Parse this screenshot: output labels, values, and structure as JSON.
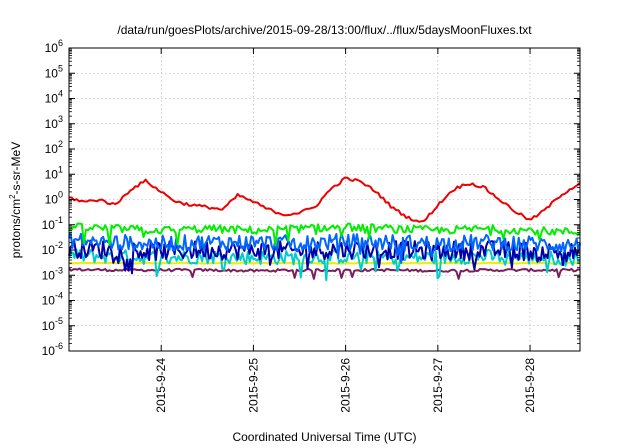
{
  "chart_data": {
    "type": "line",
    "title": "/data/run/goesPlots/archive/2015-09-28/13:00/flux/../flux/5daysMoonFluxes.txt",
    "xlabel": "Coordinated Universal Time (UTC)",
    "ylabel": {
      "pre": "protons/cm",
      "sup": "2",
      "post": "-s-sr-MeV"
    },
    "y_scale": "log",
    "ylim": [
      1e-06,
      1000000.0
    ],
    "y_ticks": [
      {
        "value": 1e-06,
        "base": "10",
        "exp": "-6"
      },
      {
        "value": 1e-05,
        "base": "10",
        "exp": "-5"
      },
      {
        "value": 0.0001,
        "base": "10",
        "exp": "-4"
      },
      {
        "value": 0.001,
        "base": "10",
        "exp": "-3"
      },
      {
        "value": 0.01,
        "base": "10",
        "exp": "-2"
      },
      {
        "value": 0.1,
        "base": "10",
        "exp": "-1"
      },
      {
        "value": 1,
        "base": "10",
        "exp": "0"
      },
      {
        "value": 10.0,
        "base": "10",
        "exp": "1"
      },
      {
        "value": 100.0,
        "base": "10",
        "exp": "2"
      },
      {
        "value": 1000.0,
        "base": "10",
        "exp": "3"
      },
      {
        "value": 10000.0,
        "base": "10",
        "exp": "4"
      },
      {
        "value": 100000.0,
        "base": "10",
        "exp": "5"
      },
      {
        "value": 1000000.0,
        "base": "10",
        "exp": "6"
      }
    ],
    "xlim": [
      "2015-09-23T00:00",
      "2015-09-28T13:00"
    ],
    "x_ticks": [
      {
        "date": "2015-09-24T00:00",
        "label": "2015-9-24"
      },
      {
        "date": "2015-09-25T00:00",
        "label": "2015-9-25"
      },
      {
        "date": "2015-09-26T00:00",
        "label": "2015-9-26"
      },
      {
        "date": "2015-09-27T00:00",
        "label": "2015-9-27"
      },
      {
        "date": "2015-09-28T00:00",
        "label": "2015-9-28"
      }
    ],
    "grid": true,
    "legend": false,
    "series": [
      {
        "color": "#ee0000",
        "x": [
          "2015-09-23T00:00",
          "2015-09-23T04:00",
          "2015-09-23T08:00",
          "2015-09-23T12:00",
          "2015-09-23T16:00",
          "2015-09-23T20:00",
          "2015-09-24T00:00",
          "2015-09-24T04:00",
          "2015-09-24T08:00",
          "2015-09-24T12:00",
          "2015-09-24T16:00",
          "2015-09-24T20:00",
          "2015-09-25T00:00",
          "2015-09-25T04:00",
          "2015-09-25T08:00",
          "2015-09-25T12:00",
          "2015-09-25T16:00",
          "2015-09-25T20:00",
          "2015-09-26T00:00",
          "2015-09-26T04:00",
          "2015-09-26T08:00",
          "2015-09-26T12:00",
          "2015-09-26T16:00",
          "2015-09-26T20:00",
          "2015-09-27T00:00",
          "2015-09-27T04:00",
          "2015-09-27T08:00",
          "2015-09-27T12:00",
          "2015-09-27T16:00",
          "2015-09-27T20:00",
          "2015-09-28T00:00",
          "2015-09-28T04:00",
          "2015-09-28T08:00",
          "2015-09-28T13:00"
        ],
        "values": [
          1.2,
          0.8,
          1.0,
          0.6,
          2.5,
          5.5,
          2.0,
          0.8,
          0.6,
          0.5,
          0.4,
          1.5,
          0.8,
          0.4,
          0.25,
          0.3,
          0.5,
          2.5,
          7,
          5,
          2,
          0.5,
          0.2,
          0.12,
          0.6,
          2.5,
          4.5,
          3,
          1,
          0.35,
          0.15,
          0.4,
          1.5,
          4.5
        ]
      },
      {
        "color": "#00ee00",
        "x": [
          "2015-09-23T00:00",
          "2015-09-23T12:00",
          "2015-09-24T00:00",
          "2015-09-24T12:00",
          "2015-09-25T00:00",
          "2015-09-25T12:00",
          "2015-09-26T00:00",
          "2015-09-26T12:00",
          "2015-09-27T00:00",
          "2015-09-27T12:00",
          "2015-09-28T00:00",
          "2015-09-28T13:00"
        ],
        "values": [
          0.08,
          0.07,
          0.06,
          0.07,
          0.06,
          0.07,
          0.08,
          0.07,
          0.06,
          0.07,
          0.06,
          0.05
        ]
      },
      {
        "color": "#0066ff",
        "x": [
          "2015-09-23T00:00",
          "2015-09-23T12:00",
          "2015-09-24T00:00",
          "2015-09-24T12:00",
          "2015-09-25T00:00",
          "2015-09-25T12:00",
          "2015-09-26T00:00",
          "2015-09-26T12:00",
          "2015-09-27T00:00",
          "2015-09-27T12:00",
          "2015-09-28T00:00",
          "2015-09-28T13:00"
        ],
        "values": [
          0.025,
          0.02,
          0.018,
          0.02,
          0.02,
          0.018,
          0.022,
          0.02,
          0.018,
          0.02,
          0.018,
          0.015
        ]
      },
      {
        "color": "#0000aa",
        "x": [
          "2015-09-23T00:00",
          "2015-09-23T12:00",
          "2015-09-24T00:00",
          "2015-09-24T12:00",
          "2015-09-25T00:00",
          "2015-09-25T12:00",
          "2015-09-26T00:00",
          "2015-09-26T12:00",
          "2015-09-27T00:00",
          "2015-09-27T12:00",
          "2015-09-28T00:00",
          "2015-09-28T13:00"
        ],
        "values": [
          0.012,
          0.01,
          0.009,
          0.01,
          0.01,
          0.009,
          0.011,
          0.01,
          0.009,
          0.01,
          0.009,
          0.008
        ]
      },
      {
        "color": "#00cccc",
        "x": [
          "2015-09-23T00:00",
          "2015-09-23T12:00",
          "2015-09-24T00:00",
          "2015-09-24T12:00",
          "2015-09-25T00:00",
          "2015-09-25T12:00",
          "2015-09-26T00:00",
          "2015-09-26T12:00",
          "2015-09-27T00:00",
          "2015-09-27T12:00",
          "2015-09-28T00:00",
          "2015-09-28T13:00"
        ],
        "values": [
          0.006,
          0.0055,
          0.005,
          0.0055,
          0.005,
          0.005,
          0.0055,
          0.005,
          0.005,
          0.0055,
          0.005,
          0.0045
        ]
      },
      {
        "color": "#eeee00",
        "x": [
          "2015-09-23T00:00",
          "2015-09-24T00:00",
          "2015-09-25T00:00",
          "2015-09-26T00:00",
          "2015-09-27T00:00",
          "2015-09-28T00:00",
          "2015-09-28T13:00"
        ],
        "values": [
          0.003,
          0.003,
          0.003,
          0.003,
          0.003,
          0.003,
          0.003
        ]
      },
      {
        "color": "#7a1f5c",
        "x": [
          "2015-09-23T00:00",
          "2015-09-23T12:00",
          "2015-09-24T00:00",
          "2015-09-24T12:00",
          "2015-09-25T00:00",
          "2015-09-25T12:00",
          "2015-09-26T00:00",
          "2015-09-26T12:00",
          "2015-09-27T00:00",
          "2015-09-27T12:00",
          "2015-09-28T00:00",
          "2015-09-28T13:00"
        ],
        "values": [
          0.0017,
          0.0016,
          0.0016,
          0.0016,
          0.0015,
          0.0016,
          0.0016,
          0.0016,
          0.0015,
          0.0016,
          0.0016,
          0.0016
        ]
      }
    ]
  }
}
